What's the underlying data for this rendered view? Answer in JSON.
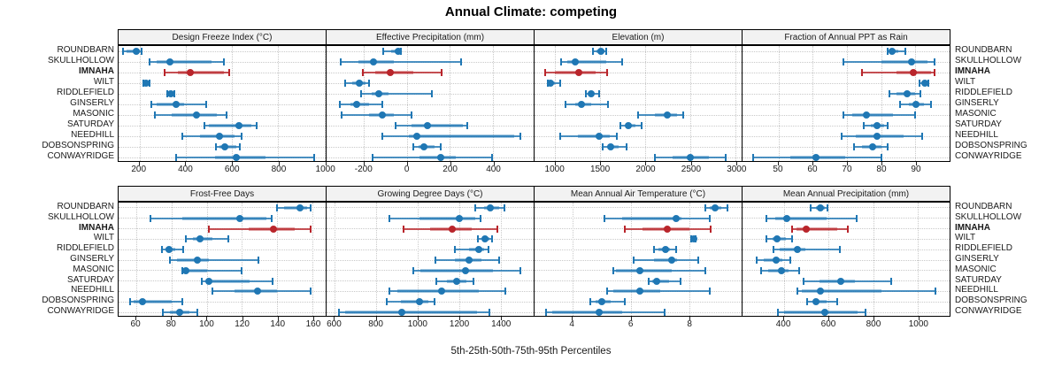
{
  "title": "Annual Climate: competing",
  "xlabel": "5th-25th-50th-75th-95th Percentiles",
  "sites": [
    "ROUNDBARN",
    "SKULLHOLLOW",
    "IMNAHA",
    "WILT",
    "RIDDLEFIELD",
    "GINSERLY",
    "MASONIC",
    "SATURDAY",
    "NEEDHILL",
    "DOBSONSPRING",
    "CONWAYRIDGE"
  ],
  "highlight_site": "IMNAHA",
  "colors": {
    "series_default": "#1F77B4",
    "series_highlight": "#B9252B",
    "strip_bg": "#F2F2F2",
    "grid": "#C9C9C9",
    "panel_border": "#000000"
  },
  "percentiles_shown": [
    "5th",
    "25th",
    "50th",
    "75th",
    "95th"
  ],
  "chart_data": [
    {
      "type": "dotplot",
      "title": "Design Freeze Index (°C)",
      "grid_row": 0,
      "grid_col": 0,
      "xlim": [
        110,
        1005
      ],
      "ticks": [
        200,
        400,
        600,
        800,
        1000
      ],
      "values": [
        [
          130,
          145,
          185,
          200,
          210
        ],
        [
          245,
          275,
          330,
          510,
          565
        ],
        [
          310,
          365,
          420,
          565,
          590
        ],
        [
          218,
          223,
          229,
          238,
          243
        ],
        [
          320,
          328,
          335,
          344,
          350
        ],
        [
          250,
          275,
          360,
          395,
          490
        ],
        [
          267,
          340,
          445,
          535,
          575
        ],
        [
          480,
          500,
          630,
          685,
          705
        ],
        [
          385,
          460,
          545,
          610,
          640
        ],
        [
          530,
          545,
          570,
          620,
          635
        ],
        [
          360,
          525,
          620,
          745,
          955
        ]
      ]
    },
    {
      "type": "dotplot",
      "title": "Effective Precipitation (mm)",
      "grid_row": 0,
      "grid_col": 1,
      "xlim": [
        -375,
        590
      ],
      "ticks": [
        -200,
        0,
        200,
        400
      ],
      "values": [
        [
          -110,
          -75,
          -40,
          -33,
          -28
        ],
        [
          -310,
          -225,
          -155,
          -60,
          250
        ],
        [
          -205,
          -150,
          -80,
          30,
          160
        ],
        [
          -290,
          -255,
          -223,
          -195,
          -175
        ],
        [
          -215,
          -165,
          -130,
          -85,
          115
        ],
        [
          -315,
          -265,
          -235,
          -175,
          -115
        ],
        [
          -305,
          -175,
          -115,
          -60,
          20
        ],
        [
          -55,
          20,
          95,
          260,
          280
        ],
        [
          -115,
          10,
          45,
          500,
          530
        ],
        [
          30,
          55,
          78,
          130,
          158
        ],
        [
          -160,
          60,
          158,
          228,
          397
        ]
      ]
    },
    {
      "type": "dotplot",
      "title": "Elevation (m)",
      "grid_row": 0,
      "grid_col": 2,
      "xlim": [
        770,
        3065
      ],
      "ticks": [
        1000,
        1500,
        2000,
        2500,
        3000
      ],
      "values": [
        [
          1420,
          1460,
          1510,
          1540,
          1560
        ],
        [
          1060,
          1130,
          1220,
          1560,
          1745
        ],
        [
          890,
          1000,
          1260,
          1450,
          1570
        ],
        [
          915,
          930,
          950,
          1000,
          1055
        ],
        [
          1335,
          1370,
          1395,
          1430,
          1490
        ],
        [
          1110,
          1220,
          1290,
          1400,
          1580
        ],
        [
          1920,
          2100,
          2240,
          2350,
          2420
        ],
        [
          1720,
          1780,
          1810,
          1890,
          1960
        ],
        [
          1055,
          1250,
          1490,
          1600,
          1680
        ],
        [
          1525,
          1580,
          1615,
          1700,
          1790
        ],
        [
          2105,
          2300,
          2495,
          2700,
          2890
        ]
      ]
    },
    {
      "type": "dotplot",
      "title": "Fraction of Annual PPT as Rain",
      "grid_row": 0,
      "grid_col": 3,
      "xlim": [
        39.5,
        100
      ],
      "ticks": [
        50,
        60,
        70,
        80,
        90
      ],
      "values": [
        [
          82,
          82.5,
          83.3,
          85,
          87
        ],
        [
          69,
          80,
          89,
          93.5,
          95.5
        ],
        [
          74.5,
          84.5,
          89.3,
          94.5,
          95.5
        ],
        [
          91.3,
          92,
          92.7,
          93.4,
          93.9
        ],
        [
          82.5,
          84.5,
          87.6,
          90,
          91.5
        ],
        [
          85.5,
          88,
          90.3,
          92.5,
          94.5
        ],
        [
          69,
          71.5,
          75.6,
          83.5,
          90
        ],
        [
          75,
          77,
          78.8,
          80.8,
          82
        ],
        [
          68.5,
          72.5,
          78.8,
          86.5,
          92
        ],
        [
          72,
          74.5,
          77.4,
          80,
          82
        ],
        [
          42.7,
          53.5,
          61,
          69.5,
          80
        ]
      ]
    },
    {
      "type": "dotplot",
      "title": "Frost-Free Days",
      "grid_row": 1,
      "grid_col": 0,
      "xlim": [
        50,
        167.5
      ],
      "ticks": [
        60,
        80,
        100,
        120,
        140,
        160
      ],
      "values": [
        [
          140,
          144,
          153,
          157,
          159
        ],
        [
          68,
          86,
          119,
          134,
          137
        ],
        [
          101,
          124,
          138,
          150,
          159
        ],
        [
          88,
          92,
          96,
          103,
          112.5
        ],
        [
          74.5,
          76.5,
          78.5,
          82,
          86.5
        ],
        [
          79,
          83,
          94.5,
          101,
          129.5
        ],
        [
          86,
          87.5,
          88,
          100,
          120
        ],
        [
          97,
          99.5,
          101,
          124.5,
          137.5
        ],
        [
          103,
          116,
          129,
          140,
          159
        ],
        [
          56.5,
          58.5,
          63.5,
          80,
          86
        ],
        [
          75,
          79,
          84.5,
          90,
          94.5
        ]
      ]
    },
    {
      "type": "dotplot",
      "title": "Growing Degree Days (°C)",
      "grid_row": 1,
      "grid_col": 1,
      "xlim": [
        560,
        1560
      ],
      "ticks": [
        600,
        800,
        1000,
        1200,
        1400
      ],
      "values": [
        [
          1280,
          1320,
          1350,
          1395,
          1420
        ],
        [
          865,
          1010,
          1200,
          1280,
          1305
        ],
        [
          930,
          1060,
          1165,
          1260,
          1385
        ],
        [
          1290,
          1310,
          1325,
          1345,
          1360
        ],
        [
          1180,
          1250,
          1295,
          1320,
          1340
        ],
        [
          1085,
          1180,
          1250,
          1310,
          1395
        ],
        [
          980,
          1015,
          1230,
          1365,
          1495
        ],
        [
          1090,
          1140,
          1190,
          1235,
          1270
        ],
        [
          865,
          900,
          1115,
          1295,
          1425
        ],
        [
          850,
          920,
          1010,
          1050,
          1080
        ],
        [
          620,
          650,
          925,
          1285,
          1345
        ]
      ]
    },
    {
      "type": "dotplot",
      "title": "Mean Annual Air Temperature (°C)",
      "grid_row": 1,
      "grid_col": 2,
      "xlim": [
        2.7,
        9.8
      ],
      "ticks": [
        4,
        6,
        8
      ],
      "values": [
        [
          8.55,
          8.7,
          8.9,
          9.1,
          9.3
        ],
        [
          5.1,
          5.7,
          7.55,
          7.75,
          8.7
        ],
        [
          5.8,
          6.4,
          7.25,
          8.0,
          8.75
        ],
        [
          8.08,
          8.11,
          8.15,
          8.19,
          8.22
        ],
        [
          6.8,
          6.95,
          7.2,
          7.35,
          7.55
        ],
        [
          6.1,
          6.8,
          7.4,
          7.6,
          8.3
        ],
        [
          5.4,
          5.5,
          6.3,
          7.4,
          8.55
        ],
        [
          6.6,
          6.75,
          6.9,
          7.3,
          7.7
        ],
        [
          5.2,
          5.4,
          6.3,
          7.0,
          8.7
        ],
        [
          4.6,
          4.8,
          5.0,
          5.3,
          5.8
        ],
        [
          3.1,
          3.3,
          4.9,
          5.7,
          7.15
        ]
      ]
    },
    {
      "type": "dotplot",
      "title": "Mean Annual Precipitation (mm)",
      "grid_row": 1,
      "grid_col": 3,
      "xlim": [
        215,
        1142
      ],
      "ticks": [
        400,
        600,
        800,
        1000
      ],
      "values": [
        [
          520,
          545,
          565,
          585,
          595
        ],
        [
          320,
          360,
          415,
          590,
          725
        ],
        [
          435,
          455,
          500,
          640,
          685
        ],
        [
          320,
          350,
          370,
          410,
          435
        ],
        [
          355,
          380,
          460,
          495,
          650
        ],
        [
          280,
          310,
          365,
          395,
          430
        ],
        [
          300,
          330,
          390,
          420,
          470
        ],
        [
          490,
          560,
          655,
          720,
          880
        ],
        [
          460,
          480,
          565,
          835,
          1080
        ],
        [
          505,
          530,
          545,
          590,
          640
        ],
        [
          375,
          400,
          585,
          730,
          765
        ]
      ]
    }
  ]
}
